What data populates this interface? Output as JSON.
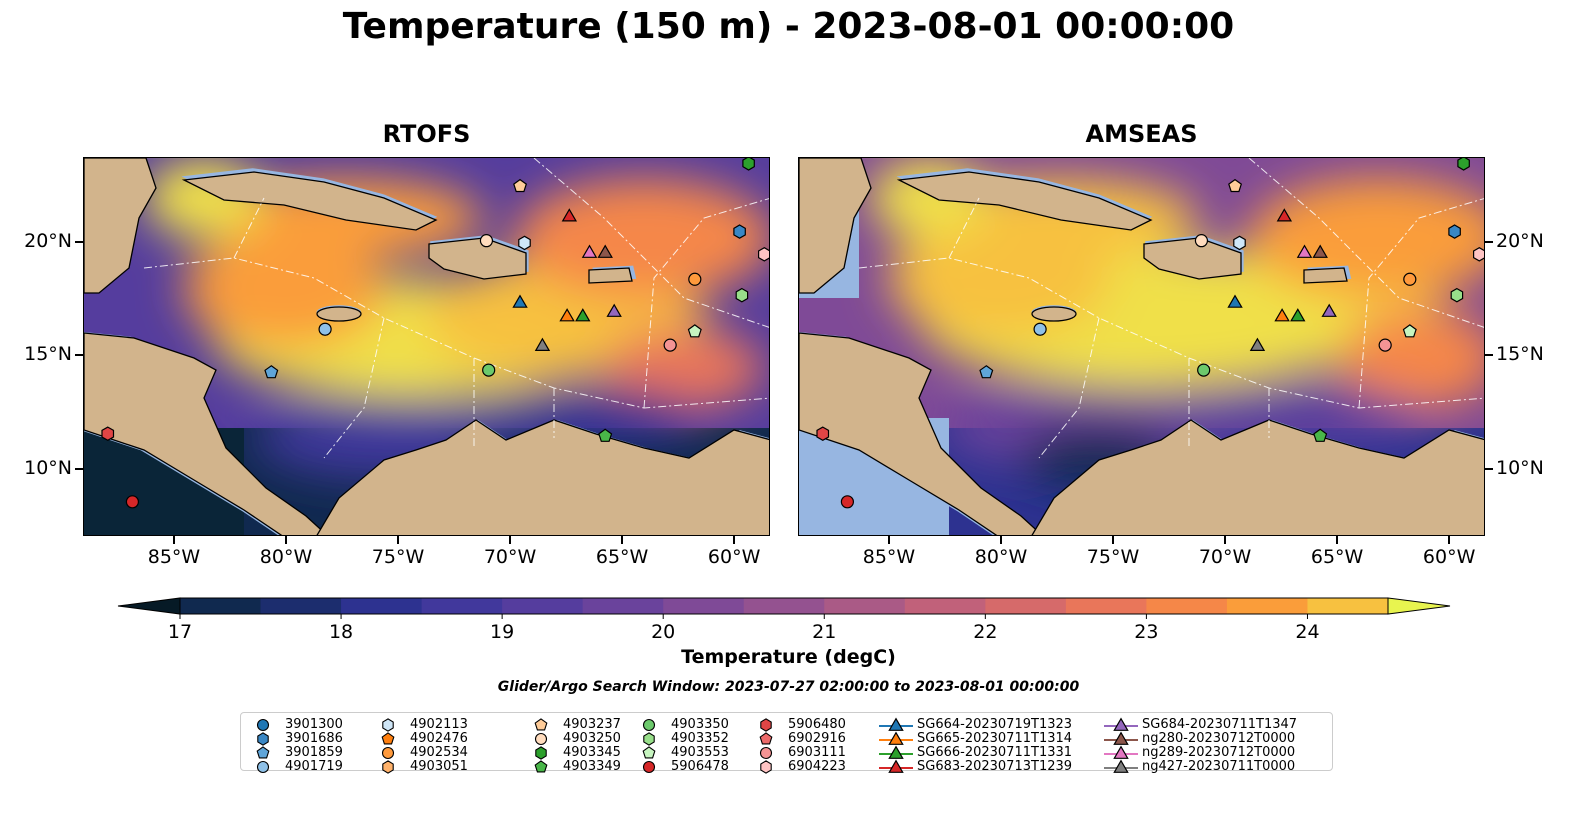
{
  "title": "Temperature (150 m) - 2023-08-01 00:00:00",
  "panels": [
    {
      "title": "RTOFS",
      "model": "rtofs"
    },
    {
      "title": "AMSEAS",
      "model": "amseas"
    }
  ],
  "map_extent": {
    "lon": [
      -89.06,
      -58.4
    ],
    "lat": [
      7.05,
      23.74
    ]
  },
  "lon_ticks": [
    {
      "value": -85,
      "label": "85°W"
    },
    {
      "value": -80,
      "label": "80°W"
    },
    {
      "value": -75,
      "label": "75°W"
    },
    {
      "value": -70,
      "label": "70°W"
    },
    {
      "value": -65,
      "label": "65°W"
    },
    {
      "value": -60,
      "label": "60°W"
    }
  ],
  "lat_ticks": [
    {
      "value": 20,
      "label": "20°N"
    },
    {
      "value": 15,
      "label": "15°N"
    },
    {
      "value": 10,
      "label": "10°N"
    }
  ],
  "colorbar": {
    "label": "Temperature (degC)",
    "min": 17,
    "max": 24.5,
    "step": 0.5,
    "ticks": [
      "17",
      "18",
      "19",
      "20",
      "21",
      "22",
      "23",
      "24"
    ],
    "colors": [
      "#0a2538",
      "#10294f",
      "#1c2d6e",
      "#2d3290",
      "#41389c",
      "#553d9e",
      "#6a439c",
      "#7f4a97",
      "#945290",
      "#aa5a86",
      "#c1617a",
      "#d66a6a",
      "#e9765a",
      "#f58748",
      "#fa9d3a",
      "#f7c140",
      "#f0e04a"
    ],
    "over_color": "#e8f44f",
    "under_color": "#061a26"
  },
  "search_window": "Glider/Argo Search Window: 2023-07-27 02:00:00 to 2023-08-01 00:00:00",
  "land_color": "#d2b48c",
  "shelf_color": "#97b6e1",
  "legend": [
    {
      "label": "3901300",
      "shape": "circle",
      "color": "#1f77b4"
    },
    {
      "label": "3901686",
      "shape": "hexagon",
      "color": "#3a87c4"
    },
    {
      "label": "3901859",
      "shape": "pentagon",
      "color": "#5fa5d9"
    },
    {
      "label": "4901719",
      "shape": "circle",
      "color": "#8fc1e8"
    },
    {
      "label": "4902113",
      "shape": "hexagon",
      "color": "#cfe6f7"
    },
    {
      "label": "4902476",
      "shape": "pentagon",
      "color": "#ff7f0e"
    },
    {
      "label": "4902534",
      "shape": "circle",
      "color": "#ff9a3c"
    },
    {
      "label": "4903051",
      "shape": "hexagon",
      "color": "#ffb26b"
    },
    {
      "label": "4903237",
      "shape": "pentagon",
      "color": "#ffcc99"
    },
    {
      "label": "4903250",
      "shape": "circle",
      "color": "#ffdcbe"
    },
    {
      "label": "4903345",
      "shape": "hexagon",
      "color": "#2ca02c"
    },
    {
      "label": "4903349",
      "shape": "pentagon",
      "color": "#49b649"
    },
    {
      "label": "4903350",
      "shape": "circle",
      "color": "#6cc96c"
    },
    {
      "label": "4903352",
      "shape": "hexagon",
      "color": "#98df8a"
    },
    {
      "label": "4903553",
      "shape": "pentagon",
      "color": "#c7f5c0"
    },
    {
      "label": "5906478",
      "shape": "circle",
      "color": "#d62728"
    },
    {
      "label": "5906480",
      "shape": "hexagon",
      "color": "#e04545"
    },
    {
      "label": "6902916",
      "shape": "pentagon",
      "color": "#ec6a6a"
    },
    {
      "label": "6903111",
      "shape": "circle",
      "color": "#f59494"
    },
    {
      "label": "6904223",
      "shape": "hexagon",
      "color": "#ffc4c4"
    },
    {
      "label": "SG664-20230719T1323",
      "shape": "triangle",
      "color": "#1f77b4",
      "line": true
    },
    {
      "label": "SG665-20230711T1314",
      "shape": "triangle",
      "color": "#ff7f0e",
      "line": true
    },
    {
      "label": "SG666-20230711T1331",
      "shape": "triangle",
      "color": "#2ca02c",
      "line": true
    },
    {
      "label": "SG683-20230713T1239",
      "shape": "triangle",
      "color": "#d62728",
      "line": true
    },
    {
      "label": "SG684-20230711T1347",
      "shape": "triangle",
      "color": "#9467bd",
      "line": true
    },
    {
      "label": "ng280-20230712T0000",
      "shape": "triangle",
      "color": "#8c564b",
      "line": true
    },
    {
      "label": "ng289-20230712T0000",
      "shape": "triangle",
      "color": "#e377c2",
      "line": true
    },
    {
      "label": "ng427-20230711T0000",
      "shape": "triangle",
      "color": "#7f7f7f",
      "line": true
    }
  ],
  "platforms": [
    {
      "id": "5906478",
      "lon": -86.9,
      "lat": 8.6
    },
    {
      "id": "5906480",
      "lon": -88.0,
      "lat": 11.6
    },
    {
      "id": "3901859",
      "lon": -80.7,
      "lat": 14.3
    },
    {
      "id": "4901719",
      "lon": -78.3,
      "lat": 16.2
    },
    {
      "id": "4903350",
      "lon": -71.0,
      "lat": 14.4
    },
    {
      "id": "4903349",
      "lon": -65.8,
      "lat": 11.5
    },
    {
      "id": "4903250",
      "lon": -71.1,
      "lat": 20.1
    },
    {
      "id": "4902113",
      "lon": -69.4,
      "lat": 20.0
    },
    {
      "id": "4903237",
      "lon": -69.6,
      "lat": 22.5
    },
    {
      "id": "SG683-20230713T1239",
      "lon": -67.4,
      "lat": 21.2
    },
    {
      "id": "ng289-20230712T0000",
      "lon": -66.5,
      "lat": 19.6
    },
    {
      "id": "ng280-20230712T0000",
      "lon": -65.8,
      "lat": 19.6
    },
    {
      "id": "SG664-20230719T1323",
      "lon": -69.6,
      "lat": 17.4
    },
    {
      "id": "SG665-20230711T1314",
      "lon": -67.5,
      "lat": 16.8
    },
    {
      "id": "SG666-20230711T1331",
      "lon": -66.8,
      "lat": 16.8
    },
    {
      "id": "SG684-20230711T1347",
      "lon": -65.4,
      "lat": 17.0
    },
    {
      "id": "ng427-20230711T0000",
      "lon": -68.6,
      "lat": 15.5
    },
    {
      "id": "4902534",
      "lon": -61.8,
      "lat": 18.4
    },
    {
      "id": "6903111",
      "lon": -62.9,
      "lat": 15.5
    },
    {
      "id": "4903553",
      "lon": -61.8,
      "lat": 16.1
    },
    {
      "id": "6904223",
      "lon": -58.7,
      "lat": 19.5
    },
    {
      "id": "3901686",
      "lon": -59.8,
      "lat": 20.5
    },
    {
      "id": "4903352",
      "lon": -59.7,
      "lat": 17.7
    },
    {
      "id": "4903345",
      "lon": -59.4,
      "lat": 23.5
    }
  ]
}
